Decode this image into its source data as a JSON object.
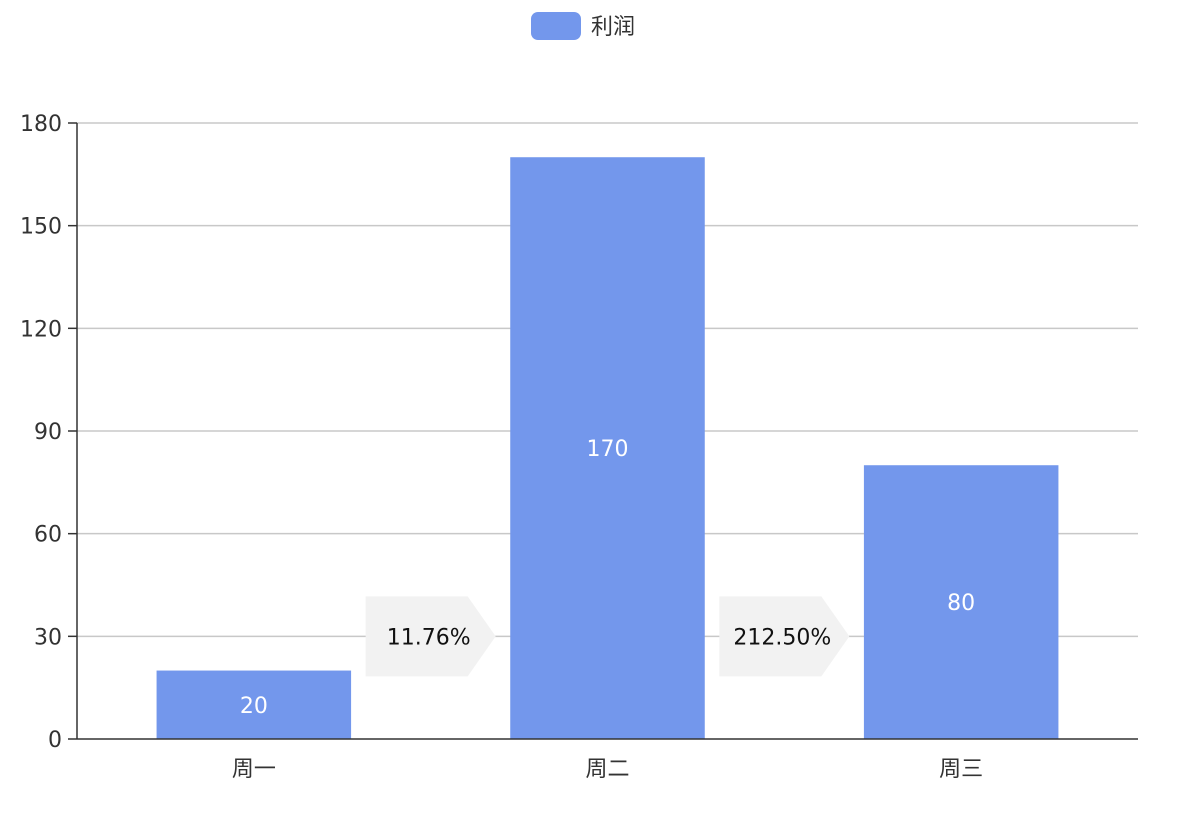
{
  "chart_data": {
    "type": "bar",
    "title": "",
    "xlabel": "",
    "ylabel": "",
    "categories": [
      "周一",
      "周二",
      "周三"
    ],
    "series": [
      {
        "name": "利润",
        "values": [
          20,
          170,
          80
        ],
        "color": "#7397ec",
        "labels": [
          "20",
          "170",
          "80"
        ]
      }
    ],
    "ylim": [
      0,
      180
    ],
    "y_ticks": [
      0,
      30,
      60,
      90,
      120,
      150,
      180
    ],
    "y_tick_labels": [
      "0",
      "30",
      "60",
      "90",
      "120",
      "150",
      "180"
    ],
    "grid": true,
    "legend": "top-center",
    "annotations": [
      {
        "between": [
          "周一",
          "周二"
        ],
        "text": "11.76%",
        "value_at": 30
      },
      {
        "between": [
          "周二",
          "周三"
        ],
        "text": "212.50%",
        "value_at": 30
      }
    ]
  }
}
